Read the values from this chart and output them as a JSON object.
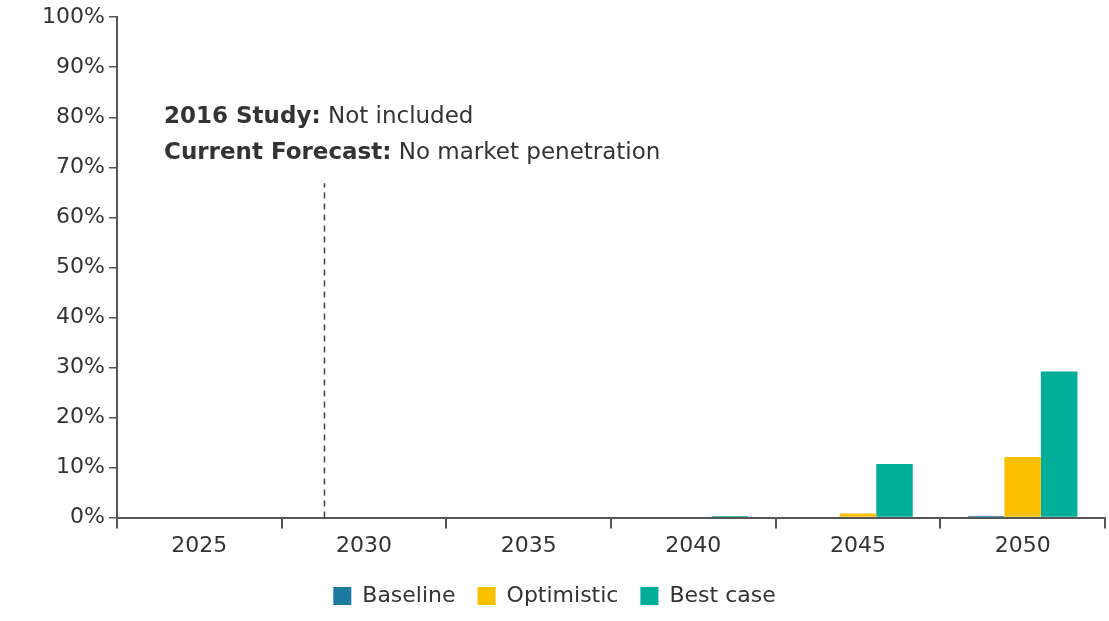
{
  "chart_data": {
    "type": "bar",
    "x": [
      2025,
      2030,
      2035,
      2040,
      2045,
      2050
    ],
    "xlim": [
      2022.5,
      2052.5
    ],
    "xticks": [
      {
        "value": 2022.5,
        "label": null
      },
      2025,
      {
        "value": 2027.5,
        "label": null
      },
      2030,
      {
        "value": 2032.5,
        "label": null
      },
      2035,
      {
        "value": 2037.5,
        "label": null
      },
      2040,
      {
        "value": 2042.5,
        "label": null
      },
      2045,
      {
        "value": 2047.5,
        "label": null
      },
      2050,
      {
        "value": 2052.5,
        "label": null
      }
    ],
    "ylim": [
      0,
      100
    ],
    "yticks": [
      {
        "value": 0,
        "label": "0%"
      },
      {
        "value": 10,
        "label": "10%"
      },
      {
        "value": 20,
        "label": "20%"
      },
      {
        "value": 30,
        "label": "30%"
      },
      {
        "value": 40,
        "label": "40%"
      },
      {
        "value": 50,
        "label": "50%"
      },
      {
        "value": 60,
        "label": "60%"
      },
      {
        "value": 70,
        "label": "70%"
      },
      {
        "value": 80,
        "label": "80%"
      },
      {
        "value": 90,
        "label": "90%"
      },
      {
        "value": 100,
        "label": "100%"
      }
    ],
    "series": [
      {
        "name": "Baseline",
        "color": "#1b7a9e",
        "values": [
          0,
          0,
          0,
          0,
          0,
          0.3
        ]
      },
      {
        "name": "Optimistic",
        "color": "#fbc000",
        "values": [
          0,
          0,
          0,
          0,
          0.8,
          12.1
        ]
      },
      {
        "name": "Best case",
        "color": "#00ae9a",
        "values": [
          0,
          0,
          0,
          0.3,
          10.7,
          29.2
        ]
      }
    ],
    "ref_lines": [
      {
        "axis": "x",
        "value": 2028.8,
        "line_style": "dashed",
        "color": "#404040"
      }
    ],
    "annotations": [
      "2016 Study: Not included",
      "Current Forecast: No market penetration"
    ],
    "grid": false,
    "legend": "bottom"
  }
}
